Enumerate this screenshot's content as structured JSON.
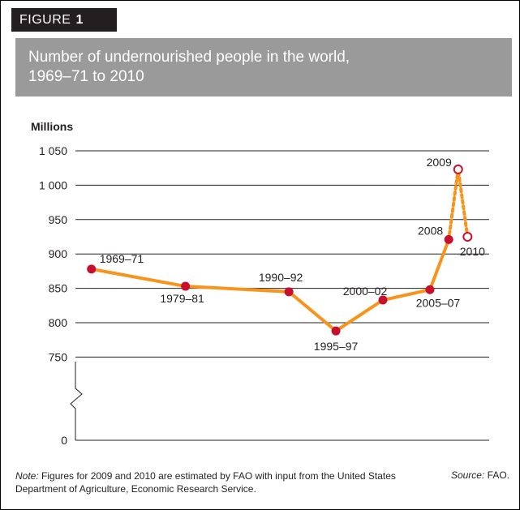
{
  "figure_label": "FIGURE",
  "figure_number": "1",
  "title_line1": "Number of undernourished people in the world,",
  "title_line2": "1969–71 to 2010",
  "note_prefix": "Note:",
  "note_text": " Figures for 2009 and 2010 are estimated by FAO with input from the United States Department of Agriculture, Economic Research Service.",
  "source_prefix": "Source:",
  "source_text": " FAO.",
  "colors": {
    "line": "#f7941d",
    "point": "#c8102e",
    "title_bg": "#9a9a9a"
  },
  "chart_data": {
    "type": "line",
    "ylabel": "Millions",
    "ylim": [
      0,
      1050
    ],
    "axis_break": true,
    "yticks": [
      {
        "value": 1050,
        "label": "1 050"
      },
      {
        "value": 1000,
        "label": "1 000"
      },
      {
        "value": 950,
        "label": "950"
      },
      {
        "value": 900,
        "label": "900"
      },
      {
        "value": 850,
        "label": "850"
      },
      {
        "value": 800,
        "label": "800"
      },
      {
        "value": 750,
        "label": "750"
      },
      {
        "value": 0,
        "label": "0"
      }
    ],
    "grid": true,
    "series": [
      {
        "style": "solid",
        "points": [
          {
            "label": "1969–71",
            "x": 1970,
            "y": 878
          },
          {
            "label": "1979–81",
            "x": 1980,
            "y": 853
          },
          {
            "label": "1990–92",
            "x": 1991,
            "y": 845
          },
          {
            "label": "1995–97",
            "x": 1996,
            "y": 788
          },
          {
            "label": "2000–02",
            "x": 2001,
            "y": 833
          },
          {
            "label": "2005–07",
            "x": 2006,
            "y": 848
          },
          {
            "label": "2008",
            "x": 2008,
            "y": 921
          }
        ]
      },
      {
        "style": "dashed",
        "estimated": true,
        "points": [
          {
            "label": "2008",
            "x": 2008,
            "y": 921
          },
          {
            "label": "2009",
            "x": 2009,
            "y": 1023
          },
          {
            "label": "2010",
            "x": 2010,
            "y": 925
          }
        ]
      }
    ]
  }
}
